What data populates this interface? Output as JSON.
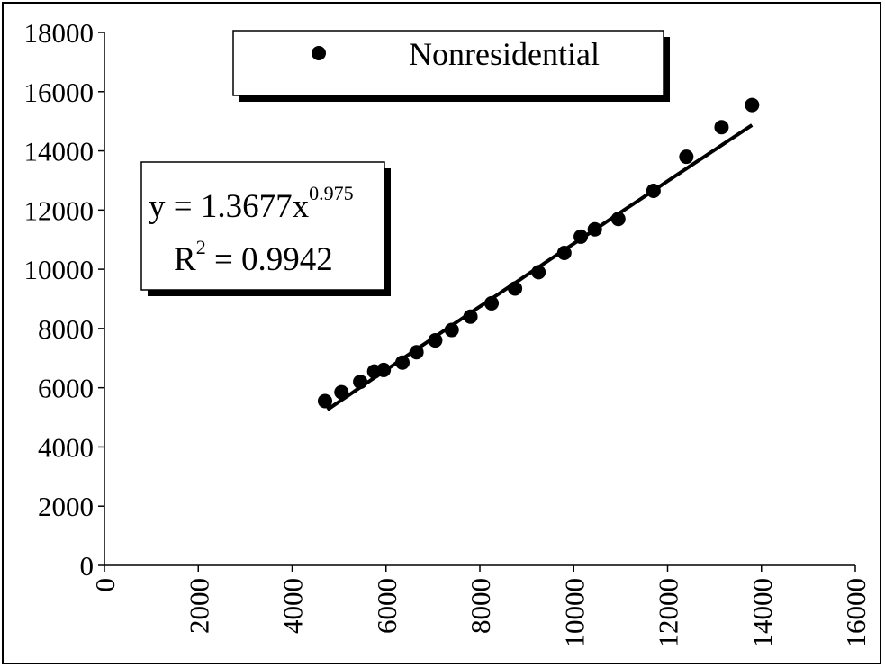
{
  "chart_data": {
    "type": "scatter",
    "xlim": [
      0,
      16000
    ],
    "ylim": [
      0,
      18000
    ],
    "x_ticks": [
      "0",
      "2000",
      "4000",
      "6000",
      "8000",
      "10000",
      "12000",
      "14000",
      "16000"
    ],
    "y_ticks": [
      "0",
      "2000",
      "4000",
      "6000",
      "8000",
      "10000",
      "12000",
      "14000",
      "16000",
      "18000"
    ],
    "legend_position": "top-center",
    "grid": false,
    "series": [
      {
        "name": "Nonresidential",
        "marker": "circle",
        "color": "#000000",
        "points": [
          {
            "x": 4700,
            "y": 5550
          },
          {
            "x": 5050,
            "y": 5850
          },
          {
            "x": 5450,
            "y": 6200
          },
          {
            "x": 5750,
            "y": 6550
          },
          {
            "x": 5950,
            "y": 6600
          },
          {
            "x": 6350,
            "y": 6850
          },
          {
            "x": 6650,
            "y": 7200
          },
          {
            "x": 7050,
            "y": 7600
          },
          {
            "x": 7400,
            "y": 7950
          },
          {
            "x": 7800,
            "y": 8400
          },
          {
            "x": 8250,
            "y": 8850
          },
          {
            "x": 8750,
            "y": 9350
          },
          {
            "x": 9250,
            "y": 9900
          },
          {
            "x": 9800,
            "y": 10550
          },
          {
            "x": 10150,
            "y": 11100
          },
          {
            "x": 10450,
            "y": 11350
          },
          {
            "x": 10950,
            "y": 11700
          },
          {
            "x": 11700,
            "y": 12650
          },
          {
            "x": 12400,
            "y": 13800
          },
          {
            "x": 13150,
            "y": 14800
          },
          {
            "x": 13800,
            "y": 15550
          }
        ]
      }
    ],
    "trendline": {
      "type": "power",
      "coefficient": 1.3677,
      "exponent": 0.975,
      "x_range": [
        4750,
        13800
      ],
      "color": "#000000"
    },
    "equation_label": {
      "prefix": "y = 1.3677x",
      "exponent": "0.975",
      "r_base": "R",
      "r_exp": "2",
      "r_rest": " = 0.9942"
    }
  }
}
